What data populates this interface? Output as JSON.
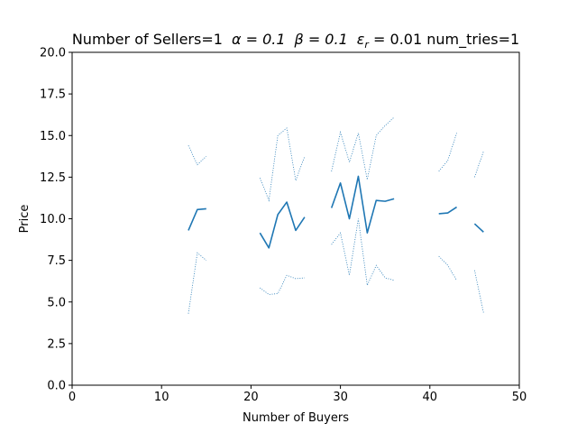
{
  "chart_data": {
    "type": "line",
    "title": "Number of Sellers=1  α = 0.1  β = 0.1  ε_r = 0.01 num_tries=1",
    "title_parts": {
      "prefix": "Number of Sellers=1",
      "alpha": "α = 0.1",
      "beta": "β = 0.1",
      "eps": "ε",
      "eps_sub": "r",
      "eps_rest": " = 0.01 num_tries=1"
    },
    "xlabel": "Number of Buyers",
    "ylabel": "Price",
    "xlim": [
      0,
      50
    ],
    "ylim": [
      0,
      20
    ],
    "xticks": [
      "0",
      "10",
      "20",
      "30",
      "40",
      "50"
    ],
    "yticks": [
      "0.0",
      "2.5",
      "5.0",
      "7.5",
      "10.0",
      "12.5",
      "15.0",
      "17.5",
      "20.0"
    ],
    "grid": false,
    "color": "#1f77b4",
    "series": [
      {
        "style": "solid",
        "segments": [
          [
            [
              13,
              9.3
            ],
            [
              14,
              10.55
            ],
            [
              15,
              10.6
            ]
          ],
          [
            [
              21,
              9.15
            ],
            [
              22,
              8.25
            ],
            [
              23,
              10.25
            ],
            [
              24,
              11.0
            ],
            [
              25,
              9.3
            ],
            [
              26,
              10.1
            ]
          ],
          [
            [
              29,
              10.65
            ],
            [
              30,
              12.15
            ],
            [
              31,
              10.0
            ],
            [
              32,
              12.55
            ],
            [
              33,
              9.15
            ],
            [
              34,
              11.1
            ],
            [
              35,
              11.05
            ],
            [
              36,
              11.2
            ]
          ],
          [
            [
              41,
              10.3
            ],
            [
              42,
              10.35
            ],
            [
              43,
              10.7
            ]
          ],
          [
            [
              45,
              9.7
            ],
            [
              46,
              9.2
            ]
          ]
        ]
      },
      {
        "style": "dotted",
        "segments": [
          [
            [
              13,
              14.4
            ],
            [
              14,
              13.25
            ],
            [
              15,
              13.75
            ]
          ],
          [
            [
              21,
              12.45
            ],
            [
              22,
              11.1
            ],
            [
              23,
              15.0
            ],
            [
              24,
              15.45
            ],
            [
              25,
              12.3
            ],
            [
              26,
              13.75
            ]
          ],
          [
            [
              29,
              12.85
            ],
            [
              30,
              15.2
            ],
            [
              31,
              13.4
            ],
            [
              32,
              15.15
            ],
            [
              33,
              12.35
            ],
            [
              34,
              15.0
            ],
            [
              35,
              15.6
            ],
            [
              36,
              16.1
            ]
          ],
          [
            [
              41,
              12.85
            ],
            [
              42,
              13.5
            ],
            [
              43,
              15.15
            ]
          ],
          [
            [
              45,
              12.5
            ],
            [
              46,
              14.05
            ]
          ]
        ]
      },
      {
        "style": "dotted",
        "segments": [
          [
            [
              13,
              4.3
            ],
            [
              14,
              7.95
            ],
            [
              15,
              7.5
            ]
          ],
          [
            [
              21,
              5.85
            ],
            [
              22,
              5.45
            ],
            [
              23,
              5.5
            ],
            [
              24,
              6.6
            ],
            [
              25,
              6.4
            ],
            [
              26,
              6.45
            ]
          ],
          [
            [
              29,
              8.45
            ],
            [
              30,
              9.15
            ],
            [
              31,
              6.6
            ],
            [
              32,
              10.0
            ],
            [
              33,
              6.0
            ],
            [
              34,
              7.2
            ],
            [
              35,
              6.45
            ],
            [
              36,
              6.3
            ]
          ],
          [
            [
              41,
              7.75
            ],
            [
              42,
              7.2
            ],
            [
              43,
              6.3
            ]
          ],
          [
            [
              45,
              6.9
            ],
            [
              46,
              4.35
            ]
          ]
        ]
      }
    ]
  }
}
